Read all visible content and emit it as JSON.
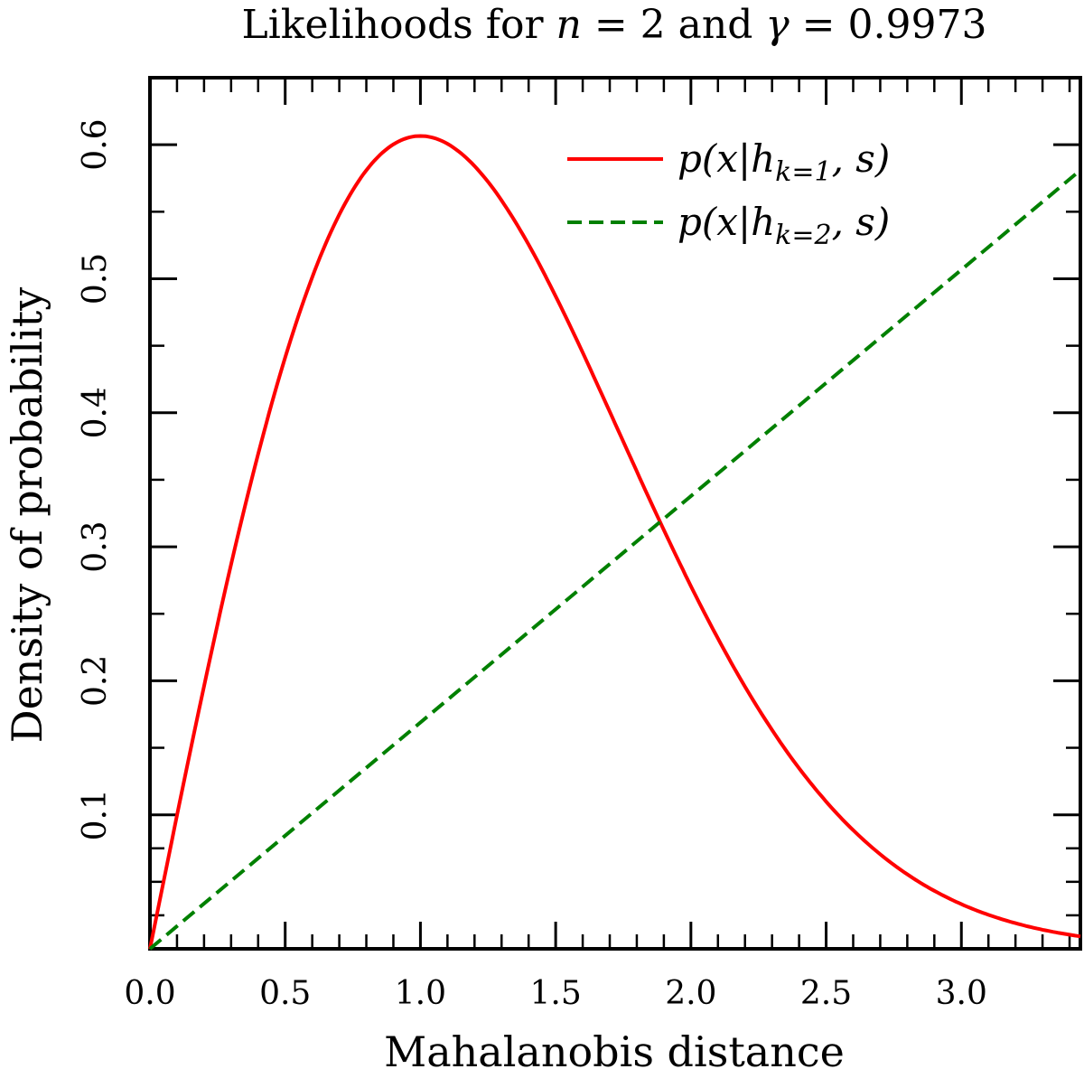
{
  "chart_data": {
    "type": "line",
    "title": "Likelihoods for n = 2 and γ = 0.9973",
    "xlabel": "Mahalanobis distance",
    "ylabel": "Density of probability",
    "xlim": [
      0.0,
      3.44
    ],
    "ylim": [
      0.0,
      0.65
    ],
    "x_ticks": [
      "0.0",
      "0.5",
      "1.0",
      "1.5",
      "2.0",
      "2.5",
      "3.0"
    ],
    "y_ticks": [
      "0.1",
      "0.2",
      "0.3",
      "0.4",
      "0.5",
      "0.6"
    ],
    "legend_position": "top-right",
    "series": [
      {
        "name": "p(x|h_{k=1}, s)",
        "legend_label": "p(x|hk=1, s)",
        "color": "#ff0000",
        "style": "solid",
        "x": [
          0.0,
          0.1,
          0.2,
          0.3,
          0.4,
          0.5,
          0.6,
          0.7,
          0.8,
          0.9,
          1.0,
          1.1,
          1.2,
          1.3,
          1.4,
          1.5,
          1.6,
          1.7,
          1.8,
          1.9,
          2.0,
          2.1,
          2.2,
          2.3,
          2.4,
          2.5,
          2.6,
          2.7,
          2.8,
          2.9,
          3.0,
          3.1,
          3.2,
          3.3,
          3.44
        ],
        "values": [
          0.0,
          0.0995,
          0.196,
          0.2867,
          0.3692,
          0.4412,
          0.5012,
          0.548,
          0.5809,
          0.5996,
          0.6065,
          0.6003,
          0.5841,
          0.559,
          0.5262,
          0.487,
          0.444,
          0.3991,
          0.3537,
          0.3094,
          0.2707,
          0.2305,
          0.1947,
          0.1623,
          0.1348,
          0.11,
          0.088,
          0.0694,
          0.0541,
          0.0425,
          0.0333,
          0.0253,
          0.0191,
          0.0143,
          0.0095
        ]
      },
      {
        "name": "p(x|h_{k=2}, s)",
        "legend_label": "p(x|hk=2, s)",
        "color": "#008000",
        "style": "dashed",
        "x": [
          0.0,
          3.44
        ],
        "values": [
          0.0,
          0.581
        ]
      }
    ]
  }
}
